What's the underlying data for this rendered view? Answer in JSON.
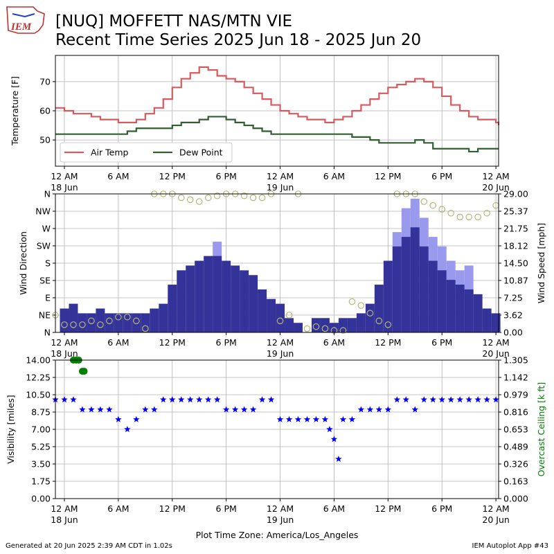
{
  "header": {
    "title_line1": "[NUQ] MOFFETT NAS/MTN VIE",
    "title_line2": "Recent Time Series 2025 Jun 18 - 2025 Jun 20",
    "logo_text": "IEM"
  },
  "footer": {
    "generated": "Generated at 20 Jun 2025 2:39 AM CDT in 1.02s",
    "app": "IEM Autoplot App #43"
  },
  "colors": {
    "air_temp": "#d9585c",
    "dew_point": "#2f5e2f",
    "wind_speed": "#333399",
    "wind_gust": "#9999ee",
    "wind_dir": "#b5b878",
    "visibility": "#0000ff",
    "ceiling": "#008000",
    "ceiling_label": "#008000",
    "grid": "#b0b0b0"
  },
  "x_axis": {
    "range_hours": [
      -1.0,
      48.3
    ],
    "ticks": [
      {
        "h": 0,
        "l1": "12 AM",
        "l2": "18 Jun"
      },
      {
        "h": 6,
        "l1": "6 AM",
        "l2": ""
      },
      {
        "h": 12,
        "l1": "12 PM",
        "l2": ""
      },
      {
        "h": 18,
        "l1": "6 PM",
        "l2": ""
      },
      {
        "h": 24,
        "l1": "12 AM",
        "l2": "19 Jun"
      },
      {
        "h": 30,
        "l1": "6 AM",
        "l2": ""
      },
      {
        "h": 36,
        "l1": "12 PM",
        "l2": ""
      },
      {
        "h": 42,
        "l1": "6 PM",
        "l2": ""
      },
      {
        "h": 48,
        "l1": "12 AM",
        "l2": "20 Jun"
      }
    ],
    "xlabel": "Plot Time Zone: America/Los_Angeles"
  },
  "chart_data": [
    {
      "type": "line",
      "ylabel": "Temperature [F]",
      "ylim": [
        41,
        79
      ],
      "yticks": [
        50,
        60,
        70
      ],
      "grid": true,
      "legend_position": "lower-left",
      "series": [
        {
          "name": "Air Temp",
          "x": [
            -1,
            0,
            1,
            2,
            3,
            4,
            5,
            6,
            7,
            8,
            9,
            10,
            11,
            12,
            13,
            14,
            15,
            16,
            17,
            18,
            19,
            20,
            21,
            22,
            23,
            24,
            25,
            26,
            27,
            28,
            29,
            30,
            31,
            32,
            33,
            34,
            35,
            36,
            37,
            38,
            39,
            40,
            41,
            42,
            43,
            44,
            45,
            46,
            47,
            48,
            48.3
          ],
          "values": [
            61,
            60,
            59,
            59,
            58,
            57,
            57,
            56,
            56,
            57,
            59,
            61,
            64,
            68,
            71,
            73,
            75,
            74,
            72,
            71,
            70,
            68,
            66,
            64,
            62,
            60,
            59,
            58,
            57,
            57,
            56,
            57,
            58,
            60,
            62,
            64,
            66,
            68,
            69,
            70,
            71,
            70,
            68,
            65,
            62,
            60,
            58,
            57,
            57,
            56,
            55
          ]
        },
        {
          "name": "Dew Point",
          "x": [
            -1,
            0,
            1,
            2,
            3,
            4,
            5,
            6,
            7,
            8,
            9,
            10,
            11,
            12,
            13,
            14,
            15,
            16,
            17,
            18,
            19,
            20,
            21,
            22,
            23,
            24,
            25,
            26,
            27,
            28,
            29,
            30,
            31,
            32,
            33,
            34,
            35,
            36,
            37,
            38,
            39,
            40,
            41,
            42,
            43,
            44,
            45,
            46,
            47,
            48,
            48.3
          ],
          "values": [
            52,
            52,
            52,
            52,
            52,
            52,
            52,
            52,
            53,
            54,
            54,
            54,
            54,
            55,
            56,
            56,
            57,
            58,
            58,
            57,
            56,
            55,
            54,
            53,
            52,
            52,
            52,
            52,
            52,
            52,
            52,
            52,
            52,
            51,
            51,
            50,
            49,
            49,
            49,
            49,
            50,
            49,
            47,
            47,
            47,
            47,
            46,
            47,
            47,
            47,
            47
          ]
        }
      ]
    },
    {
      "type": "bar",
      "ylabel": "Wind Direction",
      "ylabel_right": "Wind Speed [mph]",
      "dir_ticks": [
        "N",
        "NE",
        "E",
        "SE",
        "S",
        "SW",
        "W",
        "NW",
        "N"
      ],
      "speed_ticks": [
        "0.00",
        "3.62",
        "7.25",
        "10.87",
        "14.50",
        "18.12",
        "21.75",
        "25.37",
        "29.00"
      ],
      "speed_ylim": [
        0,
        29
      ],
      "grid": true,
      "speed_hours": [
        0,
        1,
        2,
        3,
        4,
        5,
        6,
        7,
        8,
        9,
        10,
        11,
        12,
        13,
        14,
        15,
        16,
        17,
        18,
        19,
        20,
        21,
        22,
        23,
        24,
        25,
        26,
        27,
        28,
        29,
        30,
        31,
        32,
        33,
        34,
        35,
        36,
        37,
        38,
        39,
        40,
        41,
        42,
        43,
        44,
        45,
        46,
        47,
        48
      ],
      "speed_values": [
        5,
        6,
        4,
        4,
        5,
        4,
        4,
        4,
        4,
        4,
        5,
        6,
        10,
        13,
        14,
        15,
        16,
        16,
        15,
        14,
        13,
        12,
        9,
        7,
        6,
        3,
        2,
        0,
        3,
        3,
        2,
        3,
        3,
        4,
        6,
        10,
        15,
        18,
        20,
        22,
        18,
        15,
        13,
        11,
        10,
        9,
        8,
        5,
        4
      ],
      "gust_hours": [
        17,
        18,
        37,
        38,
        39,
        40,
        41,
        42,
        43,
        44,
        45
      ],
      "gust_values": [
        19,
        0,
        21,
        26,
        28,
        24,
        20,
        18,
        15,
        13,
        14
      ],
      "dir_hours": [
        -1,
        0,
        1,
        2,
        3,
        4,
        5,
        6,
        7,
        8,
        9,
        10,
        11,
        12,
        13,
        14,
        15,
        16,
        17,
        18,
        19,
        20,
        21,
        22,
        23,
        24,
        25,
        26,
        27,
        28,
        29,
        30,
        31,
        32,
        33,
        34,
        35,
        36,
        37,
        38,
        39,
        40,
        41,
        42,
        43,
        44,
        45,
        46,
        47,
        48
      ],
      "dir_values": [
        45,
        20,
        20,
        20,
        30,
        20,
        30,
        40,
        40,
        30,
        10,
        360,
        360,
        360,
        350,
        345,
        340,
        350,
        355,
        360,
        360,
        355,
        350,
        350,
        360,
        30,
        45,
        360,
        10,
        15,
        10,
        5,
        5,
        80,
        70,
        50,
        30,
        20,
        360,
        360,
        360,
        340,
        330,
        320,
        310,
        300,
        300,
        300,
        310,
        330
      ]
    },
    {
      "type": "scatter",
      "ylabel": "Visibility [miles]",
      "ylabel_right": "Overcast Ceiling [k ft]",
      "vis_ticks": [
        "0.00",
        "1.75",
        "3.50",
        "5.25",
        "7.00",
        "8.75",
        "10.50",
        "12.25",
        "14.00"
      ],
      "ceil_ticks": [
        "0.000",
        "0.163",
        "0.326",
        "0.489",
        "0.653",
        "0.816",
        "0.979",
        "1.142",
        "1.305"
      ],
      "vis_ylim": [
        0,
        14
      ],
      "ceil_ylim": [
        0,
        1.305
      ],
      "grid": true,
      "vis_hours": [
        -1,
        0,
        1,
        2,
        3,
        4,
        5,
        6,
        7,
        8,
        9,
        10,
        11,
        12,
        13,
        14,
        15,
        16,
        17,
        18,
        19,
        20,
        21,
        22,
        23,
        24,
        25,
        26,
        27,
        28,
        29,
        29.5,
        30,
        30.5,
        31,
        32,
        33,
        34,
        35,
        36,
        37,
        38,
        39,
        40,
        41,
        42,
        43,
        44,
        45,
        46,
        47,
        48
      ],
      "vis_values": [
        10,
        10,
        10,
        9,
        9,
        9,
        9,
        8,
        7,
        8,
        9,
        9,
        10,
        10,
        10,
        10,
        10,
        10,
        10,
        9,
        9,
        9,
        9,
        10,
        10,
        8,
        8,
        8,
        8,
        8,
        8,
        7,
        6,
        4,
        8,
        8,
        9,
        9,
        9,
        9,
        10,
        10,
        9,
        10,
        10,
        10,
        10,
        10,
        10,
        10,
        10,
        10
      ],
      "ceil_hours": [
        1,
        1.3,
        1.6,
        2,
        2.2
      ],
      "ceil_values": [
        1.305,
        1.305,
        1.305,
        1.2,
        1.2
      ]
    }
  ]
}
